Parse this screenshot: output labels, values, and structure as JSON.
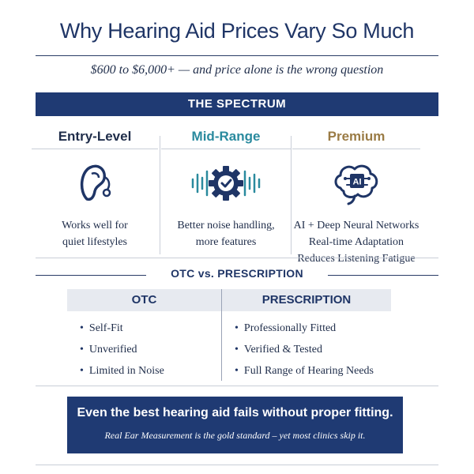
{
  "title": "Why Hearing Aid Prices Vary So Much",
  "subtitle": "$600 to $6,000+ — and price alone is the wrong question",
  "spectrum": {
    "heading": "THE SPECTRUM",
    "tiers": [
      {
        "name": "Entry-Level",
        "color": "#1f2d4a",
        "icon": "hearing-aid-icon",
        "desc": [
          "Works well for",
          "quiet lifestyles"
        ]
      },
      {
        "name": "Mid-Range",
        "color": "#2a8a9e",
        "icon": "gear-soundwave-icon",
        "desc": [
          "Better noise handling,",
          "more features"
        ]
      },
      {
        "name": "Premium",
        "color": "#9a7b45",
        "icon": "ai-brain-icon",
        "icon_label": "AI",
        "desc": [
          "AI + Deep Neural Networks",
          "Real-time Adaptation",
          "Reduces Listening Fatigue"
        ]
      }
    ]
  },
  "comparison": {
    "heading": "OTC vs. PRESCRIPTION",
    "otc": {
      "label": "OTC",
      "items": [
        "Self-Fit",
        "Unverified",
        "Limited in Noise"
      ]
    },
    "prescription": {
      "label": "PRESCRIPTION",
      "items": [
        "Professionally Fitted",
        "Verified & Tested",
        "Full Range of Hearing Needs"
      ]
    }
  },
  "callout": {
    "main": "Even the best hearing aid fails without proper fitting.",
    "sub": "Real Ear Measurement is the gold standard – yet most clinics skip it."
  }
}
